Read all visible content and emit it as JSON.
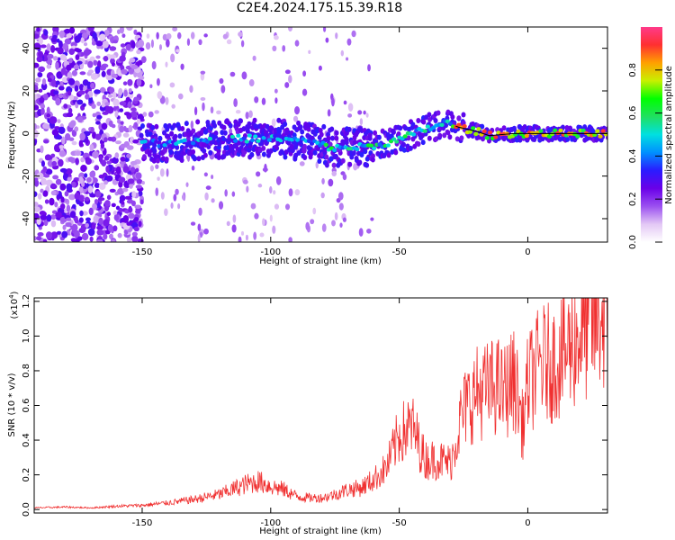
{
  "figure_title": "C2E4.2024.175.15.39.R18",
  "colors": {
    "snr_line": "#f03030",
    "frame": "#000000"
  },
  "chart_data": [
    {
      "type": "heatmap",
      "xlabel": "Height of straight line (km)",
      "ylabel": "Frequency (Hz)",
      "xlim": [
        -192,
        31
      ],
      "ylim": [
        -51,
        50
      ],
      "xticks": [
        -150,
        -100,
        -50,
        0
      ],
      "xtick_labels": [
        "-150",
        "-100",
        "-50",
        "0"
      ],
      "yticks": [
        -40,
        -20,
        0,
        20,
        40
      ],
      "ytick_labels": [
        "-40",
        "-20",
        "0",
        "20",
        "40"
      ],
      "colorbar": {
        "label": "Normalized spectral amplitude",
        "range": [
          0,
          1
        ],
        "ticks": [
          0.0,
          0.2,
          0.4,
          0.6,
          0.8
        ],
        "tick_labels": [
          "0.0",
          "0.2",
          "0.4",
          "0.6",
          "0.8"
        ],
        "colormap": [
          "#ffffff",
          "#e3c8f5",
          "#9b50f0",
          "#6a00e8",
          "#2a1cff",
          "#0090ff",
          "#00e0e0",
          "#20e060",
          "#00ff00",
          "#c8f000",
          "#ffa000",
          "#ff3030",
          "#ff3a8a"
        ]
      },
      "ridge": {
        "description_points": [
          {
            "x": -150,
            "y": -5
          },
          {
            "x": -125,
            "y": -3
          },
          {
            "x": -100,
            "y": -2
          },
          {
            "x": -85,
            "y": -4
          },
          {
            "x": -75,
            "y": -7
          },
          {
            "x": -60,
            "y": -6
          },
          {
            "x": -50,
            "y": -3
          },
          {
            "x": -40,
            "y": 2
          },
          {
            "x": -32,
            "y": 5
          },
          {
            "x": -27,
            "y": 3
          },
          {
            "x": -20,
            "y": 1
          },
          {
            "x": -15,
            "y": -1
          },
          {
            "x": -5,
            "y": 0
          },
          {
            "x": 10,
            "y": 0
          },
          {
            "x": 31,
            "y": 0
          }
        ]
      }
    },
    {
      "type": "line",
      "xlabel": "Height of straight line (km)",
      "ylabel": "SNR (10 * v/v)",
      "y_multiplier": "(x10",
      "y_multiplier_exp": "4",
      "y_multiplier_close": ")",
      "xlim": [
        -192,
        31
      ],
      "ylim": [
        -0.02,
        1.22
      ],
      "xticks": [
        -150,
        -100,
        -50,
        0
      ],
      "xtick_labels": [
        "-150",
        "-100",
        "-50",
        "0"
      ],
      "yticks": [
        0.0,
        0.2,
        0.4,
        0.6,
        0.8,
        1.0,
        1.2
      ],
      "ytick_labels": [
        "0.0",
        "0.2",
        "0.4",
        "0.6",
        "0.8",
        "1.0",
        "1.2"
      ],
      "series": [
        {
          "x": [
            -192,
            -180,
            -170,
            -160,
            -150,
            -140,
            -130,
            -120,
            -115,
            -110,
            -105,
            -100,
            -95,
            -90,
            -85,
            -80,
            -75,
            -70,
            -65,
            -60,
            -55,
            -50,
            -45,
            -40,
            -35,
            -30,
            -26,
            -24,
            -20,
            -15,
            -12,
            -10,
            -5,
            -2,
            0,
            5,
            10,
            15,
            20,
            25,
            31
          ],
          "y": [
            0.01,
            0.015,
            0.01,
            0.02,
            0.025,
            0.04,
            0.06,
            0.09,
            0.12,
            0.15,
            0.17,
            0.14,
            0.12,
            0.08,
            0.07,
            0.07,
            0.09,
            0.12,
            0.13,
            0.18,
            0.25,
            0.45,
            0.5,
            0.3,
            0.3,
            0.28,
            0.55,
            0.62,
            0.7,
            0.72,
            0.75,
            0.7,
            0.78,
            0.5,
            0.75,
            0.88,
            0.88,
            0.95,
            1.05,
            1.12,
            1.18
          ]
        }
      ]
    }
  ]
}
